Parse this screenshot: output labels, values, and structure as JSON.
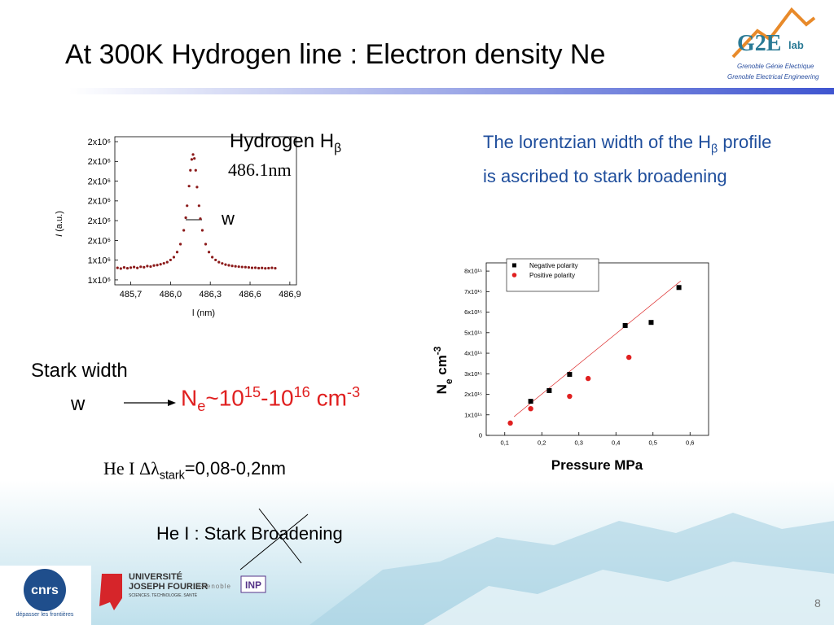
{
  "title": "At 300K Hydrogen line : Electron density Ne",
  "hbeta": [
    {
      "text": "Hydrogen H"
    },
    {
      "text": "β",
      "pos": "sub"
    }
  ],
  "wavelength": "486.1nm",
  "peak_width_label": "w",
  "description": [
    {
      "text": "The lorentzian width of the H"
    },
    {
      "text": "β",
      "pos": "sub"
    },
    {
      "text": " profile is ascribed to stark broadening"
    }
  ],
  "stark_width": "Stark width",
  "stark_w": "w",
  "density": [
    {
      "text": "N"
    },
    {
      "text": "e",
      "pos": "sub"
    },
    {
      "text": "~10"
    },
    {
      "text": "15",
      "pos": "sup"
    },
    {
      "text": "-10"
    },
    {
      "text": "16",
      "pos": "sup"
    },
    {
      "text": " cm"
    },
    {
      "text": "-3",
      "pos": "sup"
    }
  ],
  "he_width": [
    {
      "text": "He I  ",
      "font": "serif"
    },
    {
      "text": "Δλ",
      "font": "serif"
    },
    {
      "text": "stark",
      "pos": "sub"
    },
    {
      "text": "=0,08-0,2nm"
    }
  ],
  "he_stark": "He I : Stark Broadening",
  "page_number": 8,
  "logos": {
    "g2e": {
      "name": "G2E",
      "suffix": "lab",
      "line1": "Grenoble  Génie  Electrique",
      "line2": "Grenoble Electrical Engineering"
    },
    "cnrs": {
      "name": "cnrs",
      "motto": "dépasser les frontières"
    },
    "ujf": {
      "line1": "UNIVERSITÉ",
      "line2": "JOSEPH FOURIER",
      "line3": "SCIENCES. TECHNOLOGIE. SANTÉ"
    },
    "inp": {
      "city": "Grenoble",
      "name": "INP"
    }
  },
  "chart_data": [
    {
      "type": "scatter",
      "xlabel": [
        {
          "text": "l (nm)"
        }
      ],
      "ylabel": [
        {
          "text": "I",
          "style": "italic"
        },
        {
          "text": " (a.u.)"
        }
      ],
      "xlim": [
        485.58,
        486.95
      ],
      "ylim": [
        1150000,
        2650000
      ],
      "xticks": [
        {
          "value": 485.7,
          "label": "485,7"
        },
        {
          "value": 486.0,
          "label": "486,0"
        },
        {
          "value": 486.3,
          "label": "486,3"
        },
        {
          "value": 486.6,
          "label": "486,6"
        },
        {
          "value": 486.9,
          "label": "486,9"
        }
      ],
      "yticks": [
        {
          "value": 1200000,
          "label": "1x10⁶"
        },
        {
          "value": 1400000,
          "label": "1x10⁶"
        },
        {
          "value": 1600000,
          "label": "2x10⁶"
        },
        {
          "value": 1800000,
          "label": "2x10⁶"
        },
        {
          "value": 2000000,
          "label": "2x10⁶"
        },
        {
          "value": 2200000,
          "label": "2x10⁶"
        },
        {
          "value": 2400000,
          "label": "2x10⁶"
        },
        {
          "value": 2600000,
          "label": "2x10⁶"
        }
      ],
      "color": "#8b1a1a",
      "x": [
        485.6,
        485.625,
        485.65,
        485.675,
        485.7,
        485.725,
        485.75,
        485.775,
        485.8,
        485.825,
        485.85,
        485.875,
        485.9,
        485.925,
        485.95,
        485.975,
        486.0,
        486.025,
        486.05,
        486.075,
        486.1,
        486.115,
        486.125,
        486.14,
        486.15,
        486.16,
        486.17,
        486.18,
        486.19,
        486.2,
        486.215,
        486.225,
        486.24,
        486.265,
        486.29,
        486.315,
        486.34,
        486.365,
        486.39,
        486.415,
        486.44,
        486.465,
        486.49,
        486.515,
        486.54,
        486.565,
        486.59,
        486.615,
        486.64,
        486.665,
        486.69,
        486.715,
        486.74,
        486.765,
        486.79
      ],
      "values": [
        1322000,
        1315000,
        1326000,
        1318000,
        1324000,
        1330000,
        1321000,
        1333000,
        1328000,
        1340000,
        1335000,
        1346000,
        1350000,
        1358000,
        1368000,
        1380000,
        1402000,
        1430000,
        1482000,
        1562000,
        1702000,
        1830000,
        1951000,
        2150000,
        2310000,
        2420000,
        2470000,
        2430000,
        2310000,
        2140000,
        1951000,
        1820000,
        1702000,
        1562000,
        1482000,
        1430000,
        1402000,
        1380000,
        1367000,
        1355000,
        1348000,
        1342000,
        1338000,
        1334000,
        1331000,
        1329000,
        1326000,
        1322000,
        1323000,
        1319000,
        1321000,
        1317000,
        1319000,
        1322000,
        1318000
      ]
    },
    {
      "type": "scatter",
      "xlabel": [
        {
          "text": "Pressure MPa"
        }
      ],
      "ylabel": [
        {
          "text": "N"
        },
        {
          "text": "e",
          "pos": "sub"
        },
        {
          "text": " cm"
        },
        {
          "text": "-3",
          "pos": "sup"
        }
      ],
      "xlim": [
        0.05,
        0.65
      ],
      "ylim": [
        0,
        8400000000000000.0
      ],
      "xticks": [
        {
          "value": 0.1,
          "label": "0,1"
        },
        {
          "value": 0.2,
          "label": "0,2"
        },
        {
          "value": 0.3,
          "label": "0,3"
        },
        {
          "value": 0.4,
          "label": "0,4"
        },
        {
          "value": 0.5,
          "label": "0,5"
        },
        {
          "value": 0.6,
          "label": "0,6"
        }
      ],
      "yticks": [
        0,
        {
          "value": 1000000000000000.0,
          "label": "1x10¹⁵"
        },
        {
          "value": 2000000000000000.0,
          "label": "2x10¹⁵"
        },
        {
          "value": 3000000000000000.0,
          "label": "3x10¹⁵"
        },
        {
          "value": 4000000000000000.0,
          "label": "4x10¹⁵"
        },
        {
          "value": 5000000000000000.0,
          "label": "5x10¹⁵"
        },
        {
          "value": 6000000000000000.0,
          "label": "6x10¹⁵"
        },
        {
          "value": 7000000000000000.0,
          "label": "7x10¹⁵"
        },
        {
          "value": 8000000000000000.0,
          "label": "8x10¹⁵"
        }
      ],
      "legend": "top",
      "series": [
        {
          "name": "Negative polarity",
          "color": "#000000",
          "marker": "square",
          "x": [
            0.17,
            0.22,
            0.275,
            0.425,
            0.495,
            0.57
          ],
          "values": [
            1660000000000000.0,
            2180000000000000.0,
            2970000000000000.0,
            5350000000000000.0,
            5500000000000000.0,
            7200000000000000.0
          ]
        },
        {
          "name": "Positive polarity",
          "color": "#e02020",
          "marker": "circle",
          "x": [
            0.115,
            0.17,
            0.275,
            0.325,
            0.435
          ],
          "values": [
            600000000000000.0,
            1300000000000000.0,
            1900000000000000.0,
            2770000000000000.0,
            3800000000000000.0
          ]
        }
      ],
      "fit_line": {
        "color": "#e04040",
        "x": [
          0.125,
          0.575
        ],
        "values": [
          910000000000000.0,
          7520000000000000.0
        ]
      }
    }
  ]
}
